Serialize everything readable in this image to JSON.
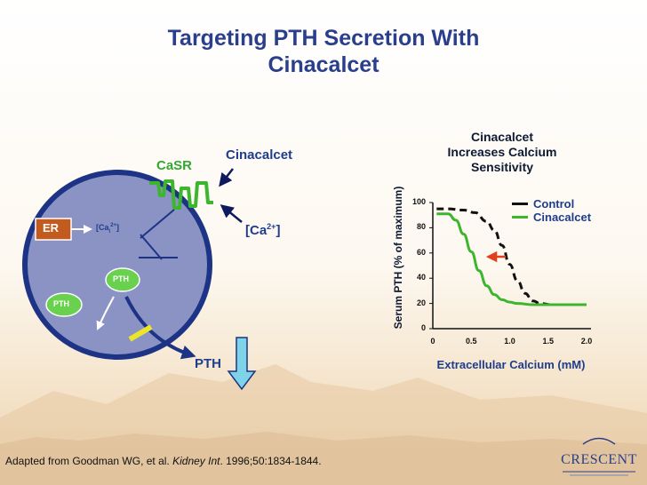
{
  "slide": {
    "title_lines": [
      "Targeting PTH Secretion With",
      "Cinacalcet"
    ],
    "caption": {
      "prefix": "Adapted from Goodman WG, et al. ",
      "journal": "Kidney Int",
      "suffix": ". 1996;50:1834-1844."
    },
    "logo": {
      "text": "CRESCENT"
    }
  },
  "diagram": {
    "casr_label": "CaSR",
    "cinacalcet_label": "Cinacalcet",
    "ca_label": "[Ca2+]",
    "er_label": "ER",
    "cai_label": "[Cai2+]",
    "pth_inner_label": "PTH",
    "pth_vesicle_label": "PTH",
    "pth_out_label": "PTH",
    "colors": {
      "cell_fill": "#8b93c5",
      "cell_stroke": "#1d3486",
      "receptor": "#3cb62c",
      "er_box": "#c35b1e",
      "vesicle": "#6ad14f",
      "pth_arrow": "#7fd3e8",
      "blocker": "#e9e52c",
      "text_blue": "#1e3d8c",
      "casr_green": "#32a832"
    }
  },
  "chart_data": {
    "type": "line",
    "title": "Cinacalcet Increases Calcium Sensitivity",
    "title_lines": [
      "Cinacalcet",
      "Increases Calcium",
      "Sensitivity"
    ],
    "xlabel": "Extracellular Calcium (mM)",
    "ylabel": "Serum PTH (% of maximum)",
    "xlim": [
      0,
      2.0
    ],
    "ylim": [
      0,
      100
    ],
    "xticks": [
      "0",
      "0.5",
      "1.0",
      "1.5",
      "2.0"
    ],
    "yticks": [
      "0",
      "20",
      "40",
      "60",
      "80",
      "100"
    ],
    "legend_position": "top-right",
    "series": [
      {
        "name": "Control",
        "style": "dashed",
        "color": "#111111",
        "x": [
          0.05,
          0.2,
          0.4,
          0.55,
          0.7,
          0.8,
          0.9,
          1.0,
          1.1,
          1.2,
          1.3,
          1.4,
          1.55,
          1.75,
          2.0
        ],
        "y": [
          95,
          95,
          94,
          92,
          85,
          78,
          66,
          51,
          38,
          28,
          22,
          20,
          19,
          19,
          19
        ]
      },
      {
        "name": "Cinacalcet",
        "style": "solid",
        "color": "#3cb62c",
        "x": [
          0.05,
          0.2,
          0.3,
          0.4,
          0.5,
          0.6,
          0.7,
          0.8,
          0.9,
          1.0,
          1.1,
          1.3,
          1.5,
          1.75,
          2.0
        ],
        "y": [
          91,
          91,
          86,
          75,
          61,
          46,
          34,
          27,
          23,
          21,
          20,
          19,
          19,
          19,
          19
        ]
      }
    ],
    "annotation": {
      "type": "arrow",
      "color": "#e0401c",
      "x_from": 0.95,
      "x_to": 0.72,
      "y": 57
    }
  }
}
